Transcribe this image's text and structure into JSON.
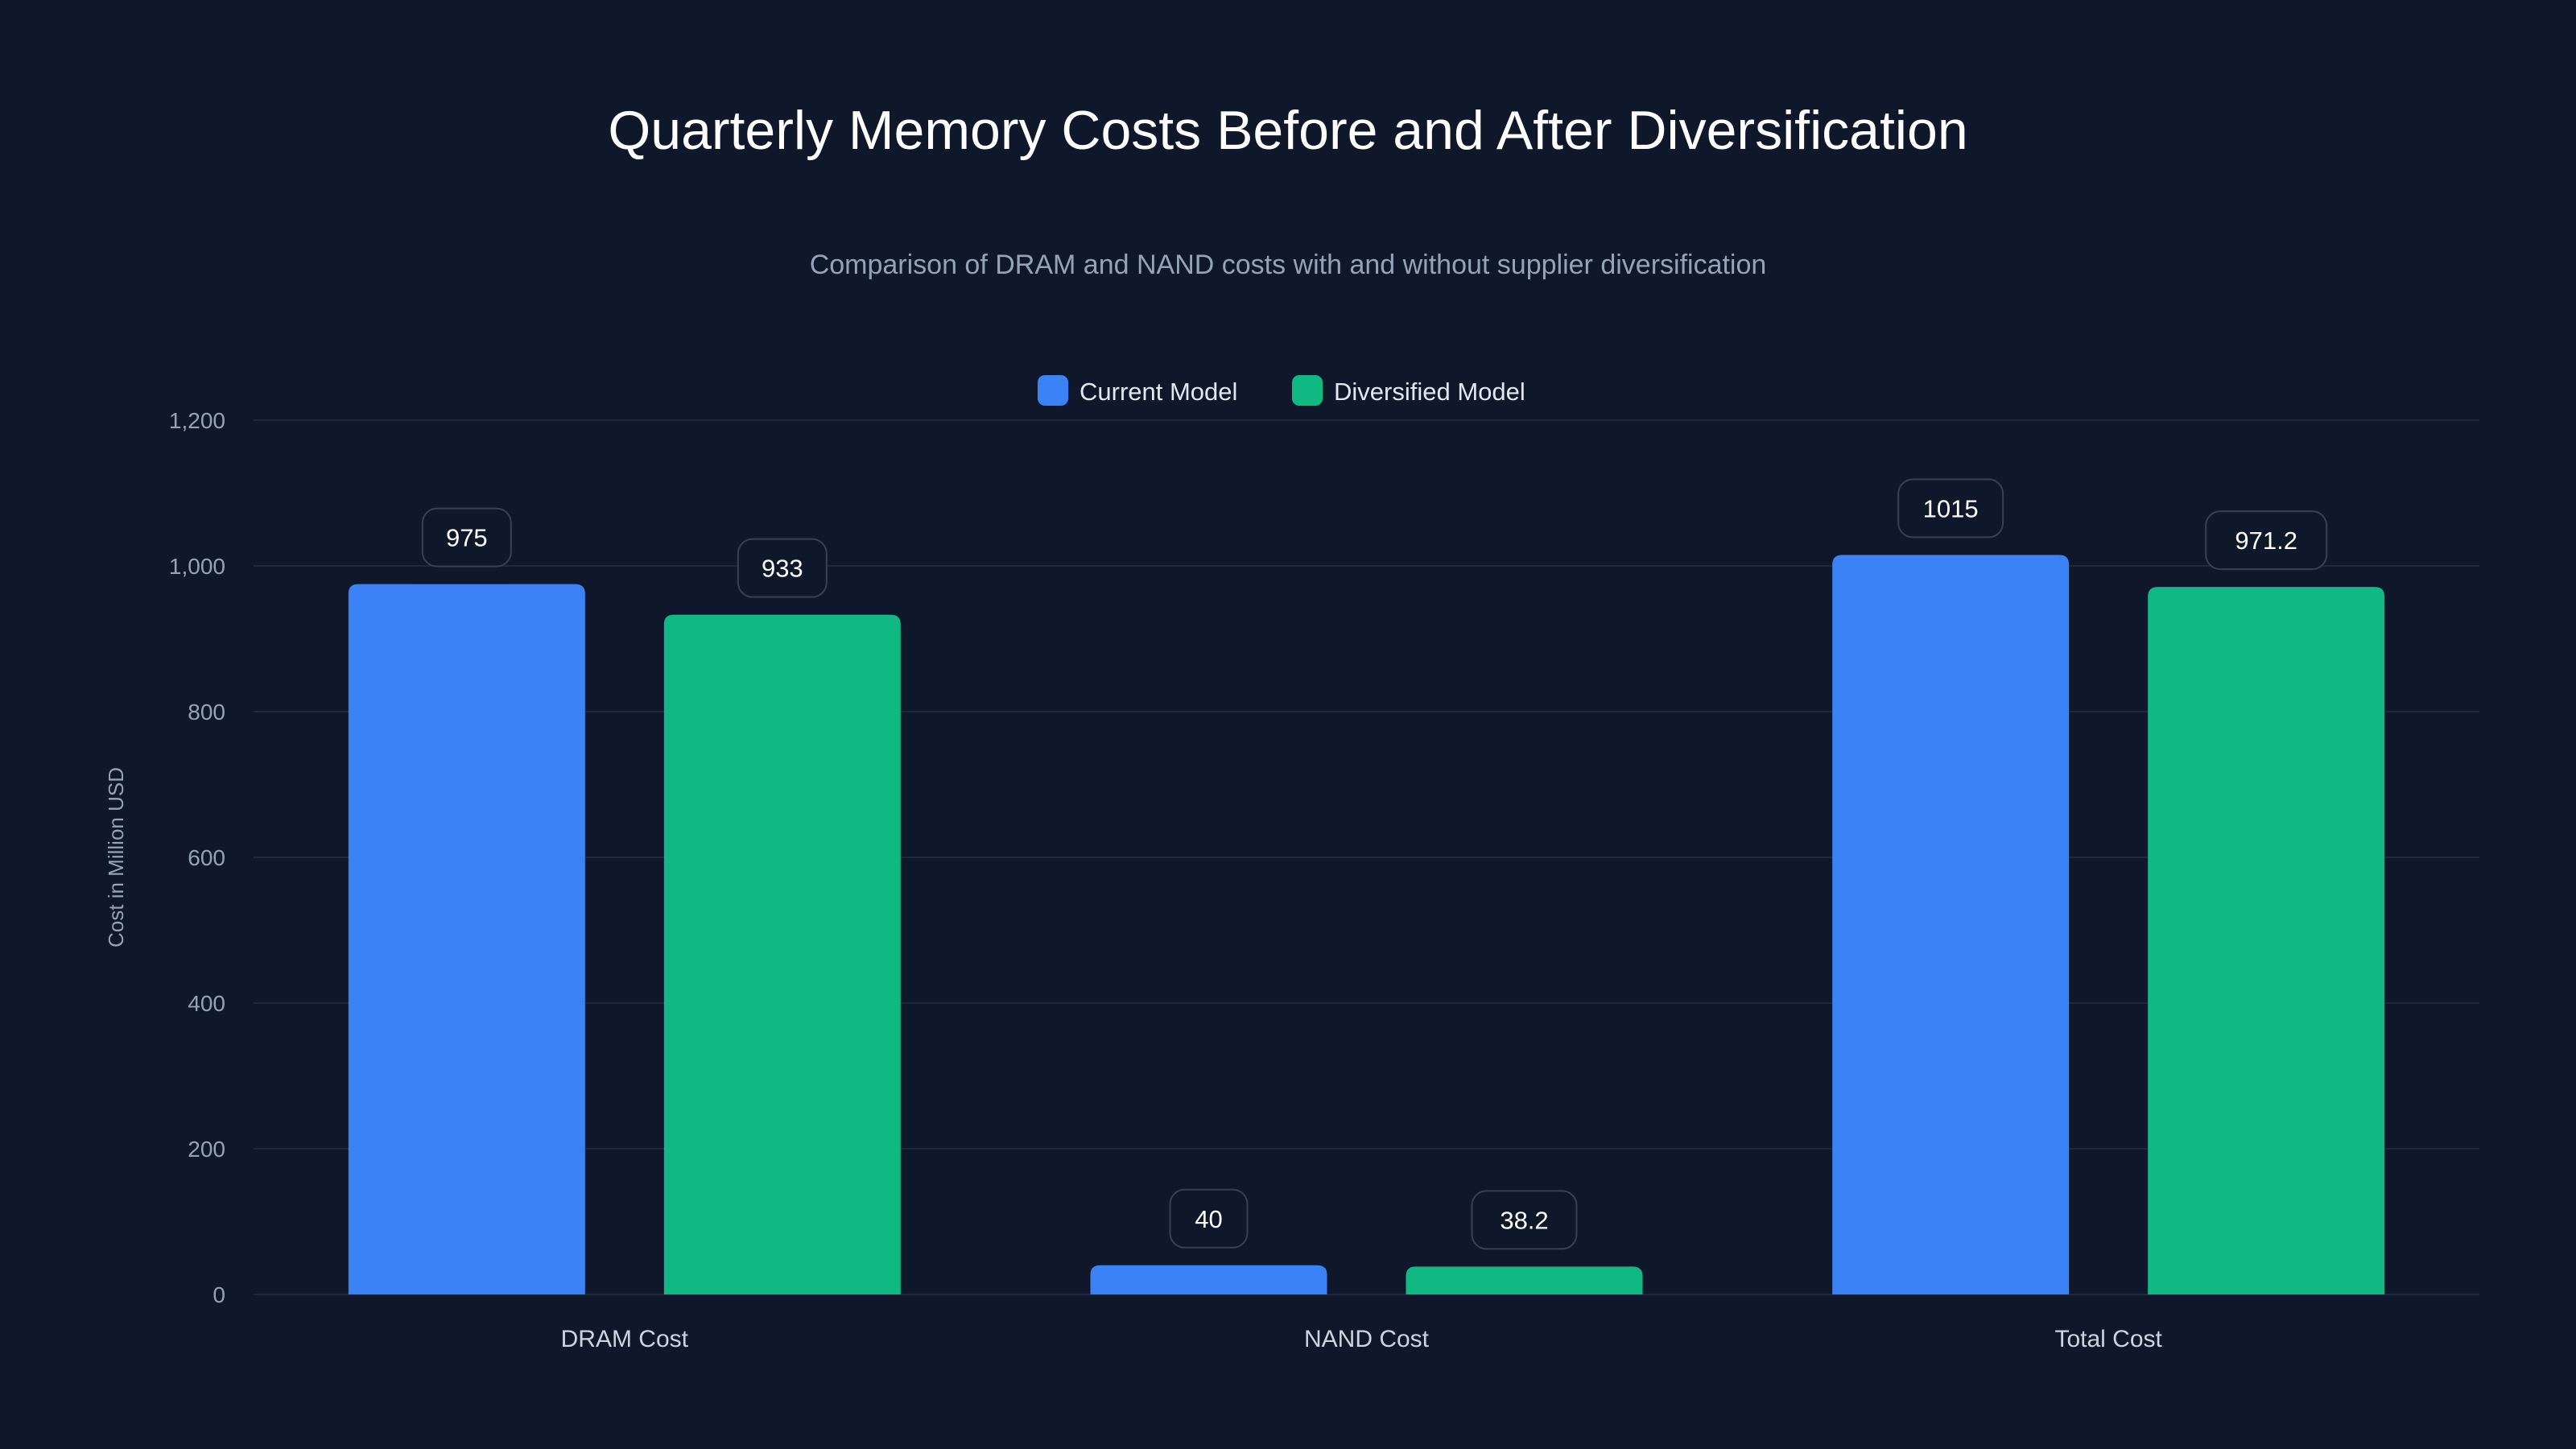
{
  "chart_data": {
    "type": "bar",
    "title": "Quarterly Memory Costs Before and After Diversification",
    "subtitle": "Comparison of DRAM and NAND costs with and without supplier diversification",
    "xlabel": "",
    "ylabel": "Cost in Million USD",
    "ylim": [
      0,
      1200
    ],
    "yticks": [
      0,
      200,
      400,
      600,
      800,
      1000,
      1200
    ],
    "ytick_labels": [
      "0",
      "200",
      "400",
      "600",
      "800",
      "1,000",
      "1,200"
    ],
    "grid": true,
    "legend_position": "top-center",
    "categories": [
      "DRAM Cost",
      "NAND Cost",
      "Total Cost"
    ],
    "series": [
      {
        "name": "Current Model",
        "color": "#3b82f6",
        "values": [
          975,
          40,
          1015
        ],
        "labels": [
          "975",
          "40",
          "1015"
        ]
      },
      {
        "name": "Diversified Model",
        "color": "#10b981",
        "values": [
          933,
          38.2,
          971.2
        ],
        "labels": [
          "933",
          "38.2",
          "971.2"
        ]
      }
    ]
  },
  "colors": {
    "background": "#0f172a",
    "grid": "#1e293b",
    "label_border": "#374151"
  }
}
